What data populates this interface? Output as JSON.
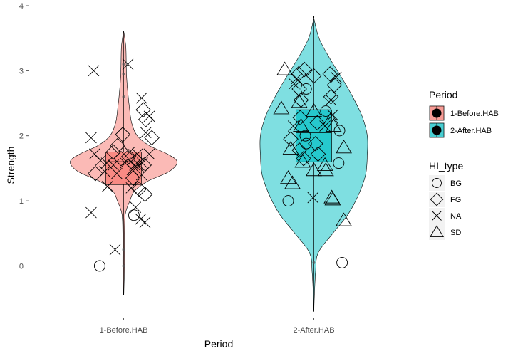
{
  "chart_data": {
    "type": "violin",
    "xlabel": "Period",
    "ylabel": "Strength",
    "categories": [
      "1-Before.HAB",
      "2-After.HAB"
    ],
    "y_ticks": [
      "0",
      "1",
      "2",
      "3",
      "4"
    ],
    "ylim": [
      -0.75,
      4
    ],
    "grid": false,
    "colors": {
      "1-Before.HAB": "#F8766D",
      "2-After.HAB": "#00BFC4"
    },
    "violins": [
      {
        "period": "1-Before.HAB",
        "min": -0.45,
        "max": 3.6,
        "density": [
          [
            -0.45,
            0.2
          ],
          [
            -0.2,
            1
          ],
          [
            0.0,
            1.5
          ],
          [
            0.2,
            1.5
          ],
          [
            0.5,
            1.5
          ],
          [
            0.8,
            3
          ],
          [
            1.0,
            11
          ],
          [
            1.15,
            19
          ],
          [
            1.3,
            42
          ],
          [
            1.45,
            80
          ],
          [
            1.6,
            94
          ],
          [
            1.72,
            77
          ],
          [
            1.85,
            45
          ],
          [
            2.0,
            24
          ],
          [
            2.2,
            14
          ],
          [
            2.45,
            10
          ],
          [
            2.7,
            7
          ],
          [
            2.95,
            5
          ],
          [
            3.15,
            4.5
          ],
          [
            3.35,
            4
          ],
          [
            3.5,
            2
          ],
          [
            3.6,
            0.2
          ]
        ],
        "box": {
          "q1": 1.25,
          "median": 1.6,
          "q3": 1.75,
          "whisker_low": -0.45,
          "whisker_high": 3.6
        },
        "outliers": [
          3.1,
          2.95,
          2.6,
          0.25,
          0.0
        ]
      },
      {
        "period": "2-After.HAB",
        "min": -0.7,
        "max": 3.8,
        "density": [
          [
            -0.7,
            0.1
          ],
          [
            -0.5,
            0.5
          ],
          [
            -0.1,
            2
          ],
          [
            0.2,
            5
          ],
          [
            0.5,
            22
          ],
          [
            0.8,
            40
          ],
          [
            1.1,
            52
          ],
          [
            1.4,
            60
          ],
          [
            1.7,
            62
          ],
          [
            2.0,
            62
          ],
          [
            2.3,
            56
          ],
          [
            2.6,
            45
          ],
          [
            2.9,
            32
          ],
          [
            3.2,
            18
          ],
          [
            3.5,
            6
          ],
          [
            3.8,
            0.1
          ]
        ],
        "box": {
          "q1": 1.6,
          "median": 2.05,
          "q3": 2.4,
          "whisker_low": -0.7,
          "whisker_high": 3.8
        },
        "outliers": [
          0.05
        ]
      }
    ],
    "points": [
      {
        "period": "1-Before.HAB",
        "jitter": -0.28,
        "y": 0.0,
        "type": "BG"
      },
      {
        "period": "1-Before.HAB",
        "jitter": 0.12,
        "y": 0.78,
        "type": "BG"
      },
      {
        "period": "1-Before.HAB",
        "jitter": -0.33,
        "y": 1.42,
        "type": "FG"
      },
      {
        "period": "1-Before.HAB",
        "jitter": -0.12,
        "y": 1.75,
        "type": "FG"
      },
      {
        "period": "1-Before.HAB",
        "jitter": -0.07,
        "y": 1.85,
        "type": "FG"
      },
      {
        "period": "1-Before.HAB",
        "jitter": -0.03,
        "y": 1.65,
        "type": "FG"
      },
      {
        "period": "1-Before.HAB",
        "jitter": -0.01,
        "y": 2.02,
        "type": "FG"
      },
      {
        "period": "1-Before.HAB",
        "jitter": 0.11,
        "y": 1.35,
        "type": "FG"
      },
      {
        "period": "1-Before.HAB",
        "jitter": 0.15,
        "y": 1.62,
        "type": "FG"
      },
      {
        "period": "1-Before.HAB",
        "jitter": 0.18,
        "y": 1.18,
        "type": "FG"
      },
      {
        "period": "1-Before.HAB",
        "jitter": 0.25,
        "y": 1.1,
        "type": "FG"
      },
      {
        "period": "1-Before.HAB",
        "jitter": 0.24,
        "y": 1.55,
        "type": "FG"
      },
      {
        "period": "1-Before.HAB",
        "jitter": 0.26,
        "y": 2.25,
        "type": "FG"
      },
      {
        "period": "1-Before.HAB",
        "jitter": 0.23,
        "y": 2.4,
        "type": "FG"
      },
      {
        "period": "1-Before.HAB",
        "jitter": 0.33,
        "y": 1.97,
        "type": "FG"
      },
      {
        "period": "1-Before.HAB",
        "jitter": 0.06,
        "y": 1.68,
        "type": "FG"
      },
      {
        "period": "1-Before.HAB",
        "jitter": -0.35,
        "y": 3.0,
        "type": "NA"
      },
      {
        "period": "1-Before.HAB",
        "jitter": -0.38,
        "y": 1.97,
        "type": "NA"
      },
      {
        "period": "1-Before.HAB",
        "jitter": -0.34,
        "y": 1.72,
        "type": "NA"
      },
      {
        "period": "1-Before.HAB",
        "jitter": -0.27,
        "y": 1.62,
        "type": "NA"
      },
      {
        "period": "1-Before.HAB",
        "jitter": -0.22,
        "y": 1.45,
        "type": "NA"
      },
      {
        "period": "1-Before.HAB",
        "jitter": -0.19,
        "y": 1.22,
        "type": "NA"
      },
      {
        "period": "1-Before.HAB",
        "jitter": -0.2,
        "y": 1.58,
        "type": "NA"
      },
      {
        "period": "1-Before.HAB",
        "jitter": -0.38,
        "y": 0.82,
        "type": "NA"
      },
      {
        "period": "1-Before.HAB",
        "jitter": -0.12,
        "y": 1.55,
        "type": "NA"
      },
      {
        "period": "1-Before.HAB",
        "jitter": -0.1,
        "y": 0.25,
        "type": "NA"
      },
      {
        "period": "1-Before.HAB",
        "jitter": -0.08,
        "y": 1.42,
        "type": "NA"
      },
      {
        "period": "1-Before.HAB",
        "jitter": 0.02,
        "y": 1.58,
        "type": "NA"
      },
      {
        "period": "1-Before.HAB",
        "jitter": 0.05,
        "y": 3.1,
        "type": "NA"
      },
      {
        "period": "1-Before.HAB",
        "jitter": 0.07,
        "y": 1.75,
        "type": "NA"
      },
      {
        "period": "1-Before.HAB",
        "jitter": 0.1,
        "y": 1.48,
        "type": "NA"
      },
      {
        "period": "1-Before.HAB",
        "jitter": 0.09,
        "y": 1.2,
        "type": "NA"
      },
      {
        "period": "1-Before.HAB",
        "jitter": 0.13,
        "y": 1.55,
        "type": "NA"
      },
      {
        "period": "1-Before.HAB",
        "jitter": 0.14,
        "y": 0.9,
        "type": "NA"
      },
      {
        "period": "1-Before.HAB",
        "jitter": 0.16,
        "y": 1.72,
        "type": "NA"
      },
      {
        "period": "1-Before.HAB",
        "jitter": 0.18,
        "y": 1.55,
        "type": "NA"
      },
      {
        "period": "1-Before.HAB",
        "jitter": 0.22,
        "y": 1.58,
        "type": "NA"
      },
      {
        "period": "1-Before.HAB",
        "jitter": 0.21,
        "y": 1.4,
        "type": "NA"
      },
      {
        "period": "1-Before.HAB",
        "jitter": 0.21,
        "y": 2.58,
        "type": "NA"
      },
      {
        "period": "1-Before.HAB",
        "jitter": 0.2,
        "y": 0.72,
        "type": "NA"
      },
      {
        "period": "1-Before.HAB",
        "jitter": 0.26,
        "y": 2.05,
        "type": "NA"
      },
      {
        "period": "1-Before.HAB",
        "jitter": 0.25,
        "y": 0.67,
        "type": "NA"
      },
      {
        "period": "1-Before.HAB",
        "jitter": 0.3,
        "y": 1.72,
        "type": "NA"
      },
      {
        "period": "1-Before.HAB",
        "jitter": 0.3,
        "y": 2.3,
        "type": "NA"
      },
      {
        "period": "2-After.HAB",
        "jitter": -0.09,
        "y": 2.72,
        "type": "BG"
      },
      {
        "period": "2-After.HAB",
        "jitter": -0.1,
        "y": 2.0,
        "type": "BG"
      },
      {
        "period": "2-After.HAB",
        "jitter": -0.09,
        "y": 1.88,
        "type": "BG"
      },
      {
        "period": "2-After.HAB",
        "jitter": 0.14,
        "y": 2.38,
        "type": "BG"
      },
      {
        "period": "2-After.HAB",
        "jitter": 0.3,
        "y": 2.08,
        "type": "BG"
      },
      {
        "period": "2-After.HAB",
        "jitter": 0.29,
        "y": 1.58,
        "type": "BG"
      },
      {
        "period": "2-After.HAB",
        "jitter": -0.3,
        "y": 1.0,
        "type": "BG"
      },
      {
        "period": "2-After.HAB",
        "jitter": 0.33,
        "y": 0.05,
        "type": "BG"
      },
      {
        "period": "2-After.HAB",
        "jitter": -0.18,
        "y": 2.95,
        "type": "FG"
      },
      {
        "period": "2-After.HAB",
        "jitter": -0.17,
        "y": 2.72,
        "type": "FG"
      },
      {
        "period": "2-After.HAB",
        "jitter": -0.15,
        "y": 2.55,
        "type": "FG"
      },
      {
        "period": "2-After.HAB",
        "jitter": -0.16,
        "y": 2.28,
        "type": "FG"
      },
      {
        "period": "2-After.HAB",
        "jitter": -0.27,
        "y": 1.95,
        "type": "FG"
      },
      {
        "period": "2-After.HAB",
        "jitter": -0.17,
        "y": 1.78,
        "type": "FG"
      },
      {
        "period": "2-After.HAB",
        "jitter": -0.12,
        "y": 1.65,
        "type": "FG"
      },
      {
        "period": "2-After.HAB",
        "jitter": -0.11,
        "y": 3.02,
        "type": "FG"
      },
      {
        "period": "2-After.HAB",
        "jitter": 0.0,
        "y": 2.92,
        "type": "FG"
      },
      {
        "period": "2-After.HAB",
        "jitter": 0.04,
        "y": 2.2,
        "type": "FG"
      },
      {
        "period": "2-After.HAB",
        "jitter": 0.02,
        "y": 1.88,
        "type": "FG"
      },
      {
        "period": "2-After.HAB",
        "jitter": 0.05,
        "y": 1.72,
        "type": "FG"
      },
      {
        "period": "2-After.HAB",
        "jitter": 0.19,
        "y": 2.95,
        "type": "FG"
      },
      {
        "period": "2-After.HAB",
        "jitter": 0.2,
        "y": 2.6,
        "type": "FG"
      },
      {
        "period": "2-After.HAB",
        "jitter": 0.24,
        "y": 2.78,
        "type": "FG"
      },
      {
        "period": "2-After.HAB",
        "jitter": -0.27,
        "y": 1.8,
        "type": "SD"
      },
      {
        "period": "2-After.HAB",
        "jitter": -0.23,
        "y": 2.8,
        "type": "NA"
      },
      {
        "period": "2-After.HAB",
        "jitter": -0.2,
        "y": 2.88,
        "type": "NA"
      },
      {
        "period": "2-After.HAB",
        "jitter": -0.24,
        "y": 2.15,
        "type": "NA"
      },
      {
        "period": "2-After.HAB",
        "jitter": -0.01,
        "y": 1.05,
        "type": "NA"
      },
      {
        "period": "2-After.HAB",
        "jitter": 0.13,
        "y": 2.15,
        "type": "NA"
      },
      {
        "period": "2-After.HAB",
        "jitter": 0.2,
        "y": 2.55,
        "type": "NA"
      },
      {
        "period": "2-After.HAB",
        "jitter": 0.26,
        "y": 2.9,
        "type": "NA"
      },
      {
        "period": "2-After.HAB",
        "jitter": 0.22,
        "y": 2.32,
        "type": "NA"
      },
      {
        "period": "2-After.HAB",
        "jitter": -0.34,
        "y": 3.02,
        "type": "SD"
      },
      {
        "period": "2-After.HAB",
        "jitter": -0.38,
        "y": 2.42,
        "type": "SD"
      },
      {
        "period": "2-After.HAB",
        "jitter": -0.3,
        "y": 1.35,
        "type": "SD"
      },
      {
        "period": "2-After.HAB",
        "jitter": -0.25,
        "y": 1.27,
        "type": "SD"
      },
      {
        "period": "2-After.HAB",
        "jitter": -0.17,
        "y": 2.52,
        "type": "SD"
      },
      {
        "period": "2-After.HAB",
        "jitter": -0.15,
        "y": 2.15,
        "type": "SD"
      },
      {
        "period": "2-After.HAB",
        "jitter": -0.13,
        "y": 1.6,
        "type": "SD"
      },
      {
        "period": "2-After.HAB",
        "jitter": 0.0,
        "y": 2.38,
        "type": "SD"
      },
      {
        "period": "2-After.HAB",
        "jitter": 0.0,
        "y": 1.47,
        "type": "SD"
      },
      {
        "period": "2-After.HAB",
        "jitter": 0.13,
        "y": 1.55,
        "type": "SD"
      },
      {
        "period": "2-After.HAB",
        "jitter": 0.14,
        "y": 1.47,
        "type": "SD"
      },
      {
        "period": "2-After.HAB",
        "jitter": 0.2,
        "y": 2.25,
        "type": "SD"
      },
      {
        "period": "2-After.HAB",
        "jitter": 0.23,
        "y": 2.15,
        "type": "SD"
      },
      {
        "period": "2-After.HAB",
        "jitter": 0.21,
        "y": 1.05,
        "type": "SD"
      },
      {
        "period": "2-After.HAB",
        "jitter": 0.22,
        "y": 1.02,
        "type": "SD"
      },
      {
        "period": "2-After.HAB",
        "jitter": 0.35,
        "y": 1.82,
        "type": "SD"
      },
      {
        "period": "2-After.HAB",
        "jitter": 0.35,
        "y": 0.7,
        "type": "SD"
      }
    ],
    "legend": {
      "placement": "right",
      "fill_title": "Period",
      "fill_items": [
        "1-Before.HAB",
        "2-After.HAB"
      ],
      "shape_title": "HI_type",
      "shape_items": [
        {
          "label": "BG",
          "shape": "circle"
        },
        {
          "label": "FG",
          "shape": "diamond"
        },
        {
          "label": "NA",
          "shape": "x"
        },
        {
          "label": "SD",
          "shape": "triangle"
        }
      ]
    }
  }
}
